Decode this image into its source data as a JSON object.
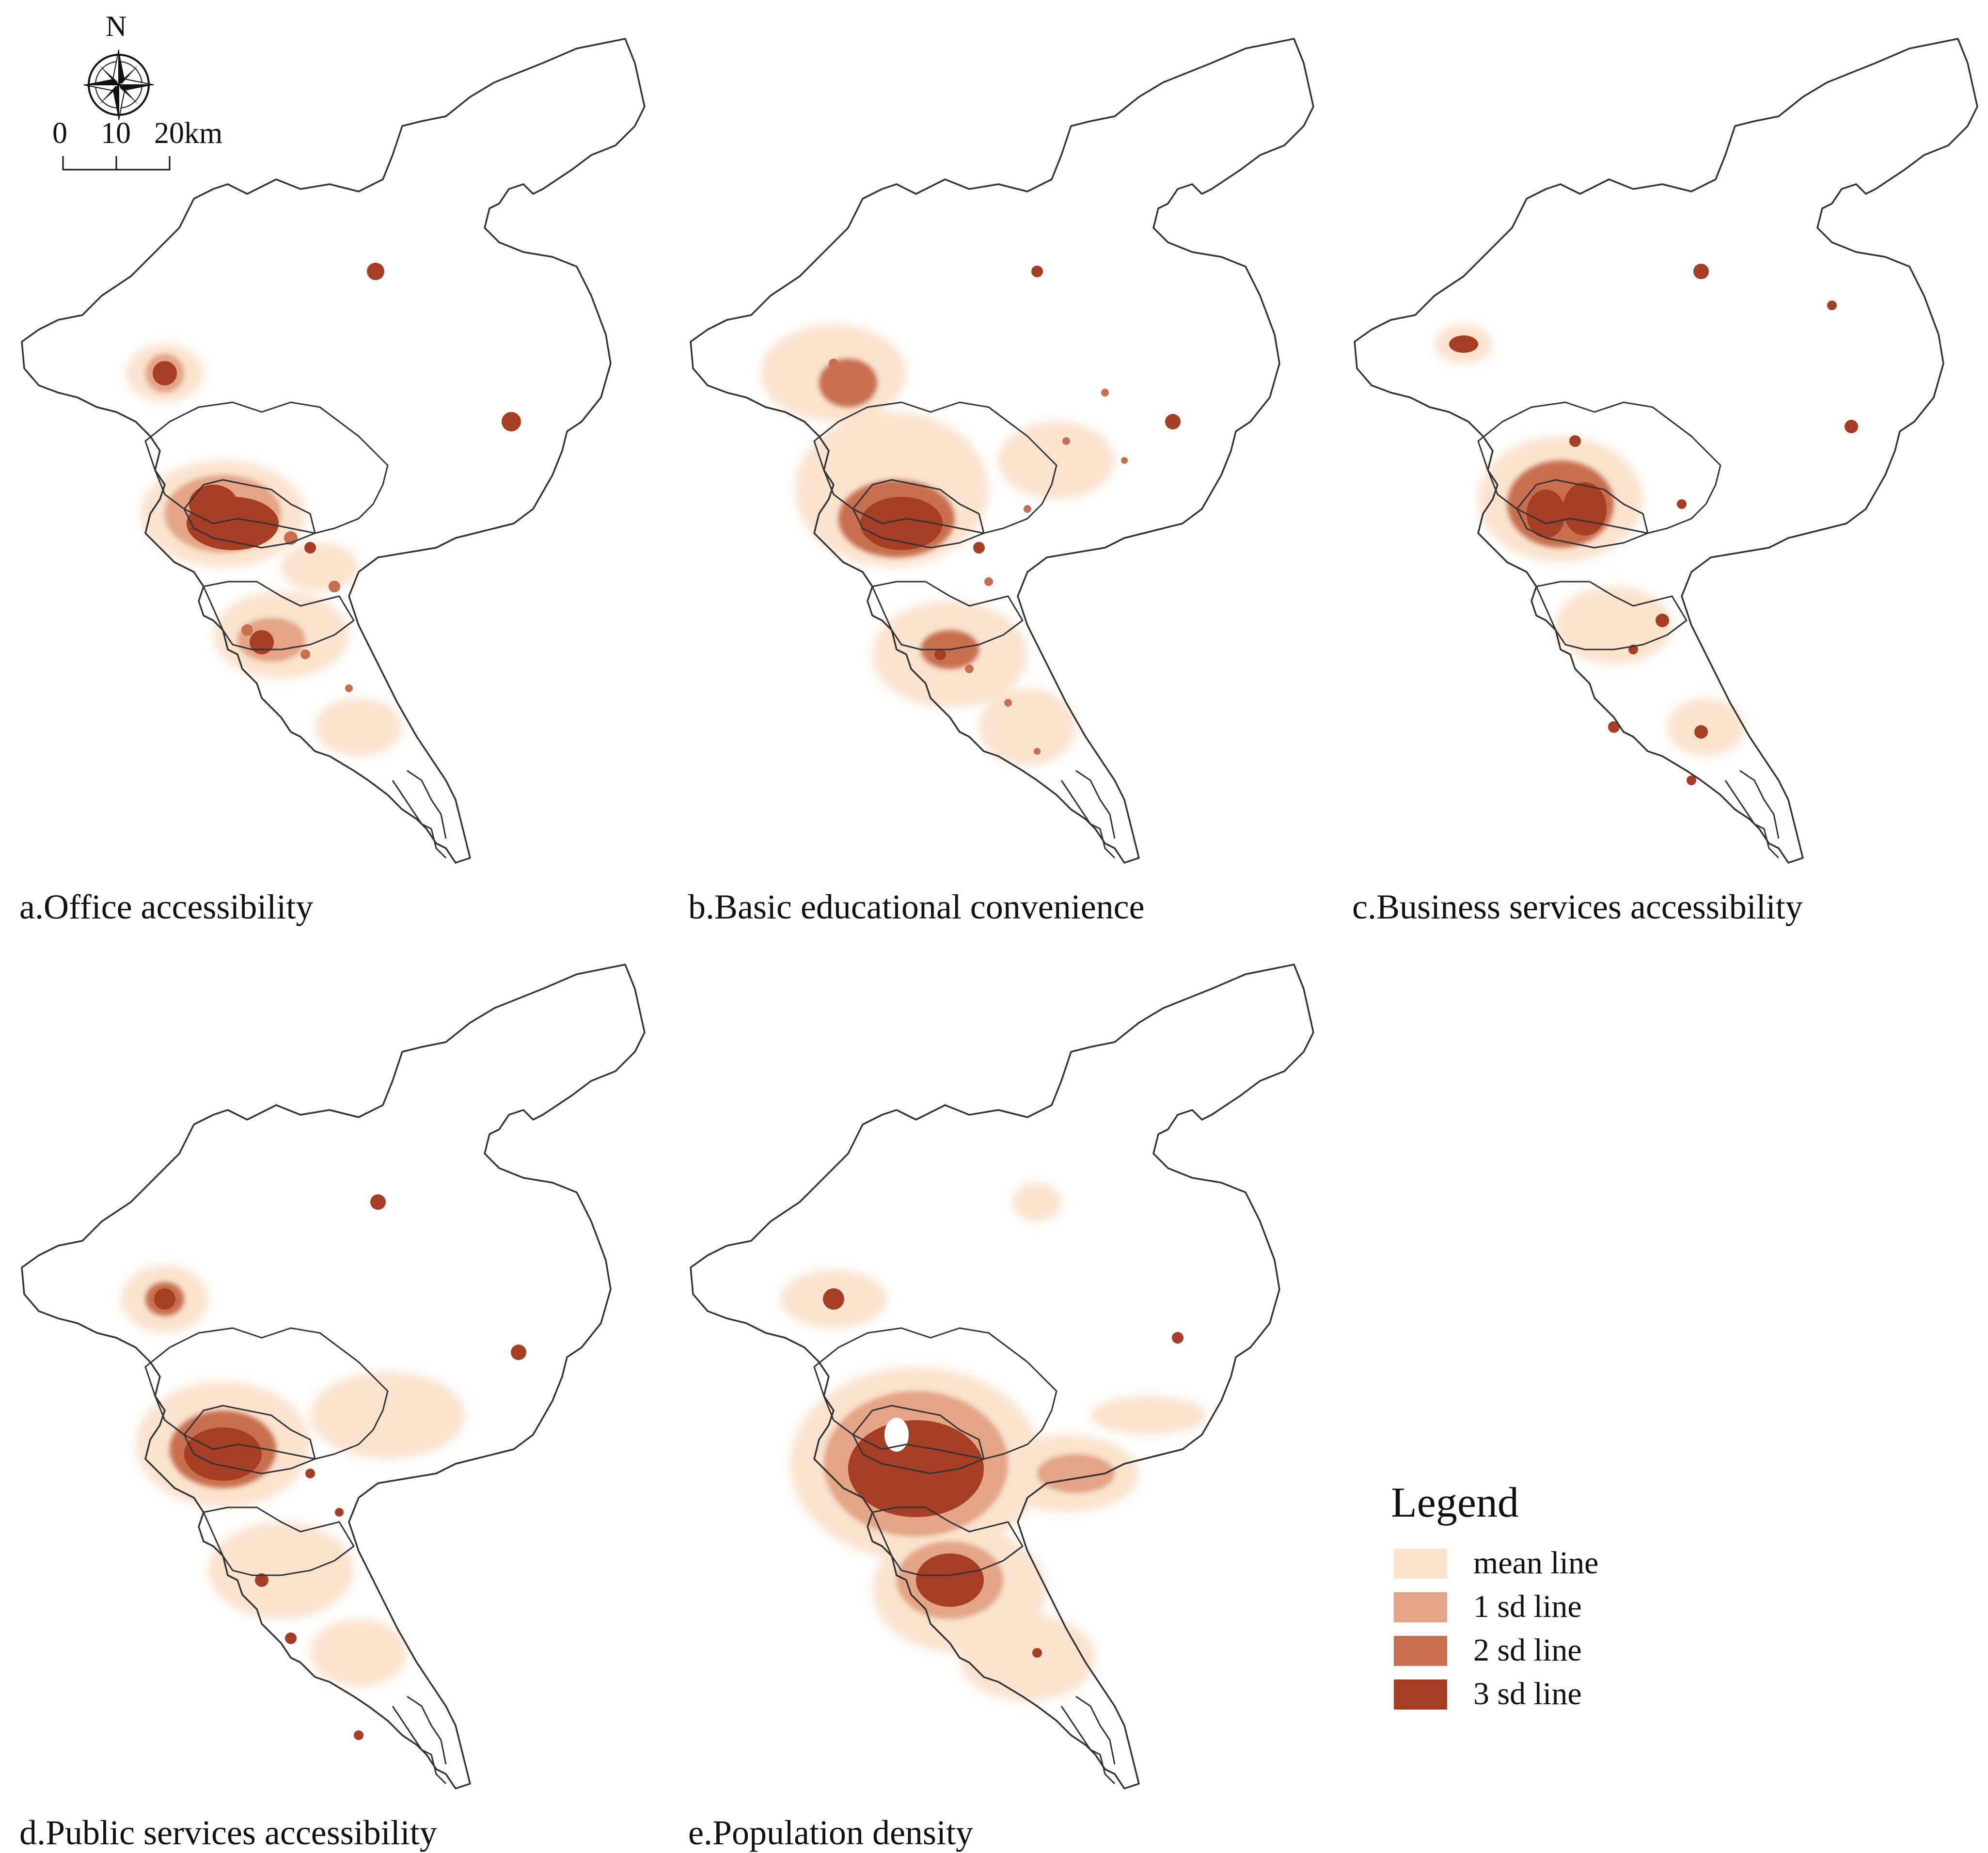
{
  "compass": {
    "north_label": "N"
  },
  "scale_bar": {
    "labels": [
      "0",
      "10",
      "20km"
    ]
  },
  "panels": [
    {
      "id": "a",
      "caption": "a.Office accessibility"
    },
    {
      "id": "b",
      "caption": "b.Basic educational convenience"
    },
    {
      "id": "c",
      "caption": "c.Business services accessibility"
    },
    {
      "id": "d",
      "caption": "d.Public services accessibility"
    },
    {
      "id": "e",
      "caption": "e.Population density"
    }
  ],
  "legend": {
    "title": "Legend",
    "items": [
      {
        "label": "mean line",
        "color": "#fae3cf"
      },
      {
        "label": "1 sd line",
        "color": "#e3a585"
      },
      {
        "label": "2 sd line",
        "color": "#c76e4f"
      },
      {
        "label": "3 sd line",
        "color": "#a63d25"
      }
    ]
  },
  "colors": {
    "boundary": "#333333",
    "background": "#ffffff"
  }
}
